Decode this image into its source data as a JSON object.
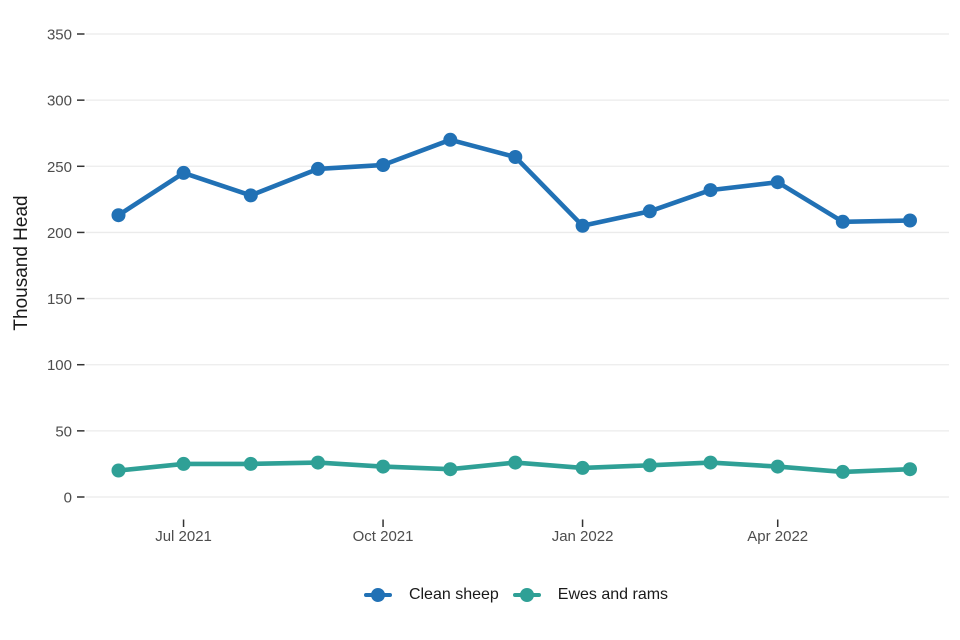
{
  "chart_data": {
    "type": "line",
    "title": "",
    "xlabel": "",
    "ylabel": "Thousand Head",
    "ylim": [
      0,
      350
    ],
    "yticks": [
      0,
      50,
      100,
      150,
      200,
      250,
      300,
      350
    ],
    "grid": "horizontal-major-only",
    "legend_position": "bottom-center",
    "x_type": "monthly-time-axis",
    "categories": [
      "Jun 2021",
      "Jul 2021",
      "Aug 2021",
      "Sep 2021",
      "Oct 2021",
      "Nov 2021",
      "Dec 2021",
      "Jan 2022",
      "Feb 2022",
      "Mar 2022",
      "Apr 2022",
      "May 2022",
      "Jun 2022"
    ],
    "month_day_offsets": [
      0,
      30,
      61,
      92,
      122,
      153,
      183,
      214,
      245,
      273,
      304,
      334,
      365
    ],
    "xticks": [
      {
        "label": "Jul 2021",
        "month_index": 1
      },
      {
        "label": "Oct 2021",
        "month_index": 4
      },
      {
        "label": "Jan 2022",
        "month_index": 7
      },
      {
        "label": "Apr 2022",
        "month_index": 10
      }
    ],
    "series": [
      {
        "name": "Clean sheep",
        "color": "#2171B5",
        "values": [
          213,
          245,
          228,
          248,
          251,
          270,
          257,
          205,
          216,
          232,
          238,
          208,
          209
        ]
      },
      {
        "name": "Ewes and rams",
        "color": "#2FA096",
        "values": [
          20,
          25,
          25,
          26,
          23,
          21,
          26,
          22,
          24,
          26,
          23,
          19,
          21
        ]
      }
    ]
  },
  "colors": {
    "background": "#FFFFFF",
    "gridline": "#EBEBEB",
    "tick_mark": "#333333",
    "tick_label": "#4D4D4D",
    "axis_title": "#1A1A1A",
    "legend_text": "#1A1A1A"
  }
}
